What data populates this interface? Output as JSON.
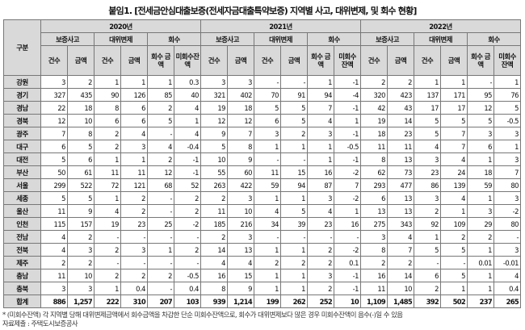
{
  "title": "붙임1. [전세금안심대출보증(전세자금대출특약보증) 지역별 사고, 대위변제, 및 회수 현황]",
  "header": {
    "region": "구분",
    "years": [
      "2020년",
      "2021년",
      "2022년"
    ],
    "groups": [
      "보증사고",
      "대위변제",
      "회수"
    ],
    "sub": {
      "count": "건수",
      "amount": "금액",
      "recovered": "회수 금액",
      "unrecovered_2020": "미회수잔액",
      "unrecovered": "미회수 잔액"
    }
  },
  "rows": [
    [
      "강원",
      "3",
      "2",
      "1",
      "1",
      "1",
      "0.3",
      "3",
      "3",
      "-",
      "-",
      "1",
      "-1",
      "2",
      "2",
      "1",
      "1",
      "-",
      "1"
    ],
    [
      "경기",
      "327",
      "435",
      "90",
      "126",
      "85",
      "40",
      "321",
      "402",
      "70",
      "91",
      "94",
      "-4",
      "320",
      "423",
      "137",
      "171",
      "95",
      "76"
    ],
    [
      "경남",
      "22",
      "18",
      "8",
      "6",
      "2",
      "4",
      "19",
      "18",
      "5",
      "5",
      "7",
      "-1",
      "42",
      "43",
      "17",
      "17",
      "12",
      "5"
    ],
    [
      "경북",
      "12",
      "10",
      "6",
      "6",
      "5",
      "1",
      "12",
      "12",
      "6",
      "5",
      "4",
      "1",
      "19",
      "14",
      "5",
      "5",
      "5",
      "-0.5"
    ],
    [
      "광주",
      "7",
      "8",
      "2",
      "4",
      "-",
      "4",
      "9",
      "7",
      "3",
      "2",
      "3",
      "-1",
      "18",
      "23",
      "5",
      "7",
      "3",
      "3"
    ],
    [
      "대구",
      "6",
      "5",
      "2",
      "3",
      "4",
      "-0.4",
      "5",
      "8",
      "1",
      "1",
      "1",
      "-0.5",
      "11",
      "11",
      "4",
      "7",
      "6",
      "1"
    ],
    [
      "대전",
      "5",
      "6",
      "1",
      "1",
      "2",
      "-1",
      "10",
      "9",
      "-",
      "-",
      "1",
      "-1",
      "8",
      "13",
      "3",
      "4",
      "1",
      "3"
    ],
    [
      "부산",
      "50",
      "61",
      "11",
      "11",
      "12",
      "-1",
      "55",
      "60",
      "11",
      "15",
      "16",
      "-2",
      "62",
      "73",
      "23",
      "24",
      "18",
      "7"
    ],
    [
      "서울",
      "299",
      "522",
      "72",
      "121",
      "68",
      "52",
      "263",
      "422",
      "59",
      "94",
      "87",
      "7",
      "293",
      "477",
      "86",
      "139",
      "59",
      "80"
    ],
    [
      "세종",
      "5",
      "5",
      "1",
      "2",
      "-",
      "2",
      "2",
      "3",
      "1",
      "1",
      "3",
      "-2",
      "6",
      "13",
      "3",
      "4",
      "1",
      "3"
    ],
    [
      "울산",
      "11",
      "9",
      "4",
      "2",
      "-",
      "2",
      "11",
      "10",
      "4",
      "5",
      "4",
      "1",
      "13",
      "13",
      "2",
      "1",
      "3",
      "-2"
    ],
    [
      "인천",
      "115",
      "157",
      "19",
      "23",
      "25",
      "-2",
      "185",
      "216",
      "34",
      "39",
      "23",
      "16",
      "275",
      "343",
      "92",
      "109",
      "29",
      "80"
    ],
    [
      "전남",
      "4",
      "2",
      "-",
      "-",
      "-",
      "-",
      "2",
      "3",
      "-",
      "-",
      "-",
      "-",
      "3",
      "4",
      "1",
      "2",
      "2",
      "-"
    ],
    [
      "전북",
      "4",
      "3",
      "2",
      "3",
      "1",
      "2",
      "14",
      "13",
      "1",
      "1",
      "2",
      "-2",
      "8",
      "7",
      "5",
      "5",
      "1",
      "3"
    ],
    [
      "제주",
      "2",
      "2",
      "-",
      "-",
      "-",
      "-",
      "4",
      "4",
      "2",
      "2",
      "2",
      "0.1",
      "2",
      "2",
      "-",
      "-",
      "0.01",
      "-0.01"
    ],
    [
      "충남",
      "11",
      "10",
      "2",
      "2",
      "2",
      "-0.5",
      "16",
      "15",
      "1",
      "1",
      "3",
      "-1",
      "16",
      "14",
      "6",
      "5",
      "1",
      "4"
    ],
    [
      "충북",
      "3",
      "3",
      "1",
      "0.4",
      "-",
      "0.4",
      "8",
      "9",
      "1",
      "1",
      "2",
      "-1",
      "11",
      "10",
      "2",
      "1",
      "1",
      "0.4"
    ],
    [
      "합계",
      "886",
      "1,257",
      "222",
      "310",
      "207",
      "103",
      "939",
      "1,214",
      "199",
      "262",
      "252",
      "10",
      "1,109",
      "1,485",
      "392",
      "502",
      "237",
      "265"
    ]
  ],
  "footnote": "* (미회수잔액) 각 지역별 당해 대위변제금액에서 회수금액을 차감한 단순 미회수잔액으로, 회수가 대위변제보다 많은 경우 미회수잔액이 음수(-)일 수 있음",
  "source": "자료제출 : 주택도시보증공사"
}
